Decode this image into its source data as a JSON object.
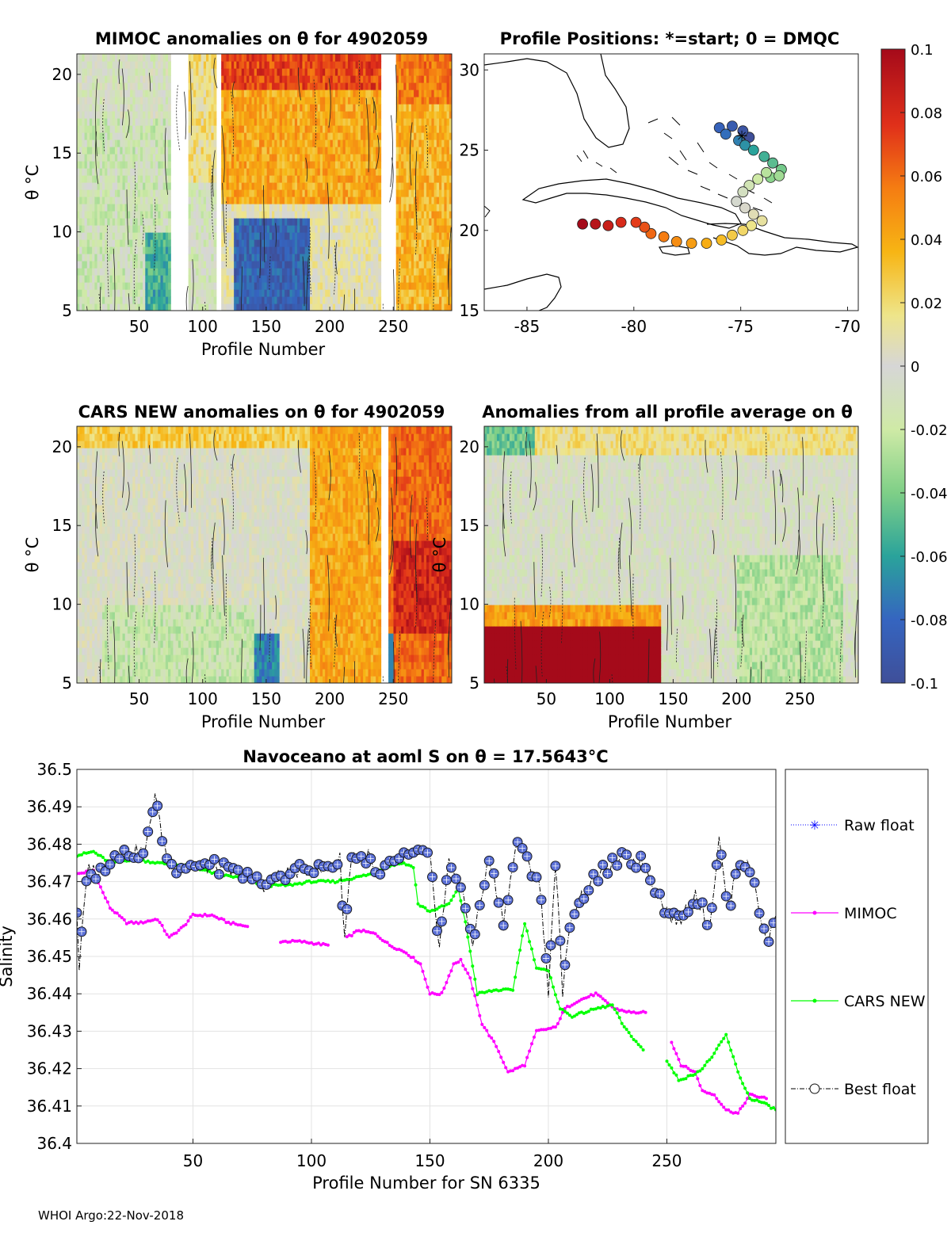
{
  "footer": "WHOI Argo:22-Nov-2018",
  "colors": {
    "raw_float": "#0000ff",
    "mimoc": "#ff00ff",
    "cars_new": "#00ff00",
    "best_float": "#000000",
    "marker_fill": "#5a6fd6"
  },
  "chart_data": [
    {
      "type": "heatmap",
      "panel": "mimoc",
      "title": "MIMOC anomalies on θ  for 4902059",
      "xlabel": "Profile Number",
      "ylabel": "θ °C",
      "xlim": [
        1,
        296
      ],
      "ylim": [
        5,
        21.3
      ],
      "xticks": [
        50,
        100,
        150,
        200,
        250
      ],
      "xtick_labels": [
        "50",
        "100",
        "150",
        "200",
        "250"
      ],
      "yticks": [
        5,
        10,
        15,
        20
      ],
      "ytick_labels": [
        "5",
        "10",
        "15",
        "20"
      ],
      "gaps": [
        [
          74,
          88
        ],
        [
          110,
          114
        ],
        [
          240,
          252
        ]
      ]
    },
    {
      "type": "scatter",
      "panel": "positions",
      "title": "Profile Positions: *=start; 0 = DMQC",
      "xlim": [
        -87,
        -69.5
      ],
      "ylim": [
        15,
        31
      ],
      "xticks": [
        -85,
        -80,
        -75,
        -70
      ],
      "xtick_labels": [
        "-85",
        "-80",
        "-75",
        "-70"
      ],
      "yticks": [
        15,
        20,
        25,
        30
      ],
      "ytick_labels": [
        "15",
        "20",
        "25",
        "30"
      ],
      "track": [
        [
          -74.6,
          25.8
        ],
        [
          -74.9,
          26.2
        ],
        [
          -75.4,
          26.5
        ],
        [
          -76.0,
          26.4
        ],
        [
          -75.7,
          26.0
        ],
        [
          -75.1,
          25.6
        ],
        [
          -74.8,
          25.3
        ],
        [
          -74.4,
          25.0
        ],
        [
          -73.9,
          24.6
        ],
        [
          -73.5,
          24.2
        ],
        [
          -73.1,
          23.8
        ],
        [
          -73.6,
          23.3
        ],
        [
          -73.2,
          23.4
        ],
        [
          -73.8,
          23.6
        ],
        [
          -74.2,
          23.2
        ],
        [
          -74.6,
          22.8
        ],
        [
          -74.9,
          22.4
        ],
        [
          -75.2,
          21.8
        ],
        [
          -74.8,
          21.4
        ],
        [
          -74.4,
          21.0
        ],
        [
          -74.0,
          20.6
        ],
        [
          -74.5,
          20.3
        ],
        [
          -74.9,
          20.0
        ],
        [
          -75.4,
          19.7
        ],
        [
          -75.9,
          19.4
        ],
        [
          -76.6,
          19.2
        ],
        [
          -77.3,
          19.2
        ],
        [
          -78.0,
          19.3
        ],
        [
          -78.6,
          19.6
        ],
        [
          -79.2,
          19.8
        ],
        [
          -79.5,
          20.2
        ],
        [
          -79.9,
          20.5
        ],
        [
          -80.6,
          20.5
        ],
        [
          -81.2,
          20.3
        ],
        [
          -81.8,
          20.4
        ],
        [
          -82.4,
          20.4
        ]
      ],
      "colorbar": {
        "min": -0.1,
        "max": 0.1,
        "ticks": [
          0.1,
          0.08,
          0.06,
          0.04,
          0.02,
          0,
          -0.02,
          -0.04,
          -0.06,
          -0.08,
          -0.1
        ],
        "tick_labels": [
          "0.1",
          "0.08",
          "0.06",
          "0.04",
          "0.02",
          "0",
          "-0.02",
          "-0.04",
          "-0.06",
          "-0.08",
          "-0.1"
        ]
      }
    },
    {
      "type": "heatmap",
      "panel": "cars",
      "title": "CARS NEW anomalies on θ for 4902059",
      "xlabel": "Profile Number",
      "ylabel": "θ °C",
      "xlim": [
        1,
        296
      ],
      "ylim": [
        5,
        21.3
      ],
      "xticks": [
        50,
        100,
        150,
        200,
        250
      ],
      "xtick_labels": [
        "50",
        "100",
        "150",
        "200",
        "250"
      ],
      "yticks": [
        5,
        10,
        15,
        20
      ],
      "ytick_labels": [
        "5",
        "10",
        "15",
        "20"
      ],
      "gaps": [
        [
          240,
          246
        ]
      ]
    },
    {
      "type": "heatmap",
      "panel": "average",
      "title": "Anomalies from all profile average on θ",
      "xlabel": "Profile Number",
      "ylabel": "θ °C",
      "xlim": [
        1,
        296
      ],
      "ylim": [
        5,
        21.3
      ],
      "xticks": [
        50,
        100,
        150,
        200,
        250
      ],
      "xtick_labels": [
        "50",
        "100",
        "150",
        "200",
        "250"
      ],
      "yticks": [
        5,
        10,
        15,
        20
      ],
      "ytick_labels": [
        "5",
        "10",
        "15",
        "20"
      ],
      "gaps": []
    },
    {
      "type": "line",
      "panel": "salinity",
      "title": "Navoceano at aoml S on θ = 17.5643°C",
      "xlabel": "Profile Number for SN 6335",
      "ylabel": "Salinity",
      "xlim": [
        1,
        296
      ],
      "ylim": [
        36.4,
        36.5
      ],
      "xticks": [
        50,
        100,
        150,
        200,
        250
      ],
      "xtick_labels": [
        "50",
        "100",
        "150",
        "200",
        "250"
      ],
      "yticks": [
        36.4,
        36.41,
        36.42,
        36.43,
        36.44,
        36.45,
        36.46,
        36.47,
        36.48,
        36.49,
        36.5
      ],
      "ytick_labels": [
        "36.4",
        "36.41",
        "36.42",
        "36.43",
        "36.44",
        "36.45",
        "36.46",
        "36.47",
        "36.48",
        "36.49",
        "36.5"
      ],
      "grid": true,
      "legend_position": "outside-right",
      "legend": [
        "Raw float",
        "MIMOC",
        "CARS NEW",
        "Best float"
      ],
      "mimoc_knots": [
        [
          1,
          36.472
        ],
        [
          8,
          36.473
        ],
        [
          12,
          36.467
        ],
        [
          15,
          36.463
        ],
        [
          22,
          36.459
        ],
        [
          28,
          36.459
        ],
        [
          35,
          36.46
        ],
        [
          40,
          36.455
        ],
        [
          46,
          36.458
        ],
        [
          50,
          36.461
        ],
        [
          58,
          36.461
        ],
        [
          65,
          36.459
        ],
        [
          73,
          36.458
        ],
        [
          null,
          null
        ],
        [
          87,
          36.454
        ],
        [
          95,
          36.454
        ],
        [
          107,
          36.453
        ],
        [
          null,
          null
        ],
        [
          115,
          36.455
        ],
        [
          120,
          36.457
        ],
        [
          127,
          36.456
        ],
        [
          133,
          36.453
        ],
        [
          140,
          36.451
        ],
        [
          146,
          36.448
        ],
        [
          150,
          36.44
        ],
        [
          155,
          36.44
        ],
        [
          160,
          36.448
        ],
        [
          163,
          36.449
        ],
        [
          167,
          36.444
        ],
        [
          172,
          36.432
        ],
        [
          178,
          36.426
        ],
        [
          183,
          36.419
        ],
        [
          190,
          36.421
        ],
        [
          195,
          36.43
        ],
        [
          203,
          36.431
        ],
        [
          207,
          36.436
        ],
        [
          212,
          36.438
        ],
        [
          220,
          36.44
        ],
        [
          228,
          36.436
        ],
        [
          235,
          36.435
        ],
        [
          241,
          36.435
        ],
        [
          null,
          null
        ],
        [
          252,
          36.427
        ],
        [
          256,
          36.421
        ],
        [
          262,
          36.419
        ],
        [
          265,
          36.414
        ],
        [
          270,
          36.413
        ],
        [
          275,
          36.409
        ],
        [
          280,
          36.408
        ],
        [
          285,
          36.413
        ],
        [
          292,
          36.412
        ]
      ],
      "cars_knots": [
        [
          1,
          36.477
        ],
        [
          8,
          36.478
        ],
        [
          15,
          36.475
        ],
        [
          25,
          36.476
        ],
        [
          35,
          36.475
        ],
        [
          50,
          36.474
        ],
        [
          60,
          36.472
        ],
        [
          70,
          36.471
        ],
        [
          80,
          36.469
        ],
        [
          90,
          36.469
        ],
        [
          100,
          36.47
        ],
        [
          110,
          36.47
        ],
        [
          118,
          36.471
        ],
        [
          125,
          36.472
        ],
        [
          132,
          36.474
        ],
        [
          138,
          36.475
        ],
        [
          143,
          36.474
        ],
        [
          145,
          36.464
        ],
        [
          150,
          36.462
        ],
        [
          158,
          36.464
        ],
        [
          162,
          36.468
        ],
        [
          165,
          36.459
        ],
        [
          170,
          36.44
        ],
        [
          178,
          36.441
        ],
        [
          185,
          36.441
        ],
        [
          190,
          36.459
        ],
        [
          195,
          36.447
        ],
        [
          200,
          36.446
        ],
        [
          205,
          36.436
        ],
        [
          210,
          36.434
        ],
        [
          220,
          36.436
        ],
        [
          227,
          36.437
        ],
        [
          232,
          36.431
        ],
        [
          240,
          36.425
        ],
        [
          null,
          null
        ],
        [
          250,
          36.422
        ],
        [
          255,
          36.417
        ],
        [
          260,
          36.418
        ],
        [
          265,
          36.42
        ],
        [
          270,
          36.424
        ],
        [
          275,
          36.429
        ],
        [
          280,
          36.419
        ],
        [
          285,
          36.412
        ],
        [
          290,
          36.411
        ],
        [
          296,
          36.409
        ]
      ],
      "float_knots": [
        [
          1,
          36.462
        ],
        [
          2,
          36.447
        ],
        [
          4,
          36.463
        ],
        [
          6,
          36.474
        ],
        [
          10,
          36.472
        ],
        [
          14,
          36.475
        ],
        [
          18,
          36.478
        ],
        [
          24,
          36.478
        ],
        [
          30,
          36.478
        ],
        [
          34,
          36.494
        ],
        [
          36,
          36.485
        ],
        [
          40,
          36.474
        ],
        [
          50,
          36.474
        ],
        [
          60,
          36.474
        ],
        [
          68,
          36.472
        ],
        [
          75,
          36.471
        ],
        [
          80,
          36.469
        ],
        [
          88,
          36.472
        ],
        [
          95,
          36.473
        ],
        [
          105,
          36.473
        ],
        [
          112,
          36.476
        ],
        [
          114,
          36.455
        ],
        [
          117,
          36.478
        ],
        [
          120,
          36.476
        ],
        [
          124,
          36.477
        ],
        [
          128,
          36.47
        ],
        [
          135,
          36.476
        ],
        [
          140,
          36.476
        ],
        [
          145,
          36.478
        ],
        [
          150,
          36.476
        ],
        [
          154,
          36.453
        ],
        [
          158,
          36.475
        ],
        [
          162,
          36.471
        ],
        [
          168,
          36.454
        ],
        [
          175,
          36.476
        ],
        [
          181,
          36.46
        ],
        [
          187,
          36.481
        ],
        [
          192,
          36.474
        ],
        [
          196,
          36.471
        ],
        [
          200,
          36.441
        ],
        [
          203,
          36.476
        ],
        [
          206,
          36.441
        ],
        [
          210,
          36.462
        ],
        [
          216,
          36.468
        ],
        [
          222,
          36.472
        ],
        [
          230,
          36.476
        ],
        [
          240,
          36.475
        ],
        [
          250,
          36.462
        ],
        [
          255,
          36.459
        ],
        [
          262,
          36.467
        ],
        [
          268,
          36.458
        ],
        [
          272,
          36.481
        ],
        [
          276,
          36.462
        ],
        [
          280,
          36.476
        ],
        [
          286,
          36.473
        ],
        [
          292,
          36.453
        ],
        [
          296,
          36.461
        ]
      ]
    }
  ]
}
